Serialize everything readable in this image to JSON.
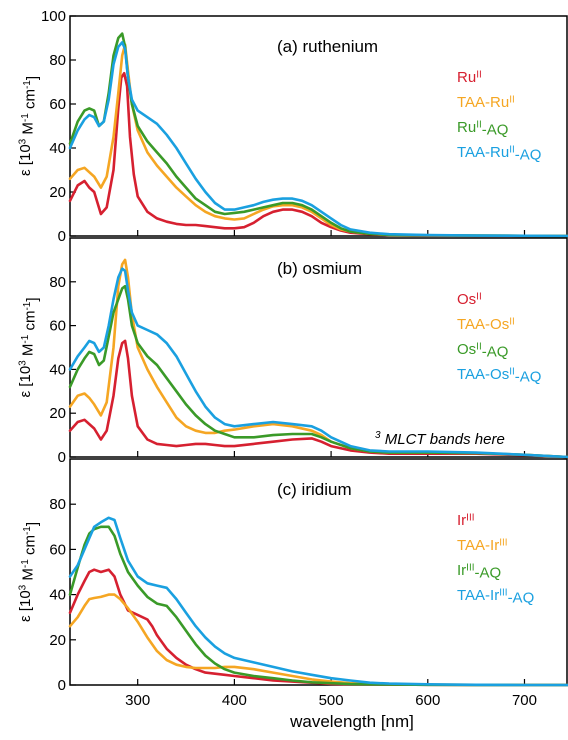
{
  "figure": {
    "xlabel": "wavelength [nm]",
    "xlim": [
      230,
      745
    ],
    "xticks": [
      300,
      400,
      500,
      600,
      700
    ],
    "annotation": "MLCT bands here",
    "annotation_superscript": "3"
  },
  "chart_data": [
    {
      "type": "line",
      "title": "(a) ruthenium",
      "ylabel": "ε [10^3 M^-1 cm^-1]",
      "ylim": [
        0,
        100
      ],
      "yticks": [
        0,
        20,
        40,
        60,
        80,
        100
      ],
      "grid": false,
      "legend_position": "top-right",
      "series": [
        {
          "name": "Ru^II",
          "color": "#d62030",
          "x": [
            230,
            238,
            245,
            250,
            255,
            262,
            268,
            275,
            280,
            283,
            286,
            289,
            292,
            296,
            300,
            310,
            320,
            330,
            340,
            350,
            360,
            370,
            380,
            390,
            400,
            410,
            420,
            430,
            440,
            450,
            460,
            470,
            480,
            490,
            500,
            510,
            520,
            540,
            560,
            600,
            650,
            700,
            745
          ],
          "y": [
            16,
            23,
            25,
            22,
            20,
            10,
            13,
            30,
            58,
            72,
            74,
            68,
            45,
            28,
            18,
            11,
            8,
            6.5,
            5.5,
            5,
            5,
            4.5,
            4,
            3.5,
            3.5,
            4,
            6,
            9,
            11,
            12,
            12,
            11,
            9,
            6,
            4,
            2.5,
            1.5,
            0.8,
            0.4,
            0.2,
            0.1,
            0.05,
            0
          ]
        },
        {
          "name": "TAA-Ru^II",
          "color": "#f5a623",
          "x": [
            230,
            238,
            245,
            250,
            255,
            262,
            268,
            275,
            280,
            284,
            287,
            290,
            294,
            300,
            310,
            320,
            330,
            340,
            350,
            360,
            370,
            380,
            390,
            400,
            410,
            420,
            430,
            440,
            450,
            460,
            470,
            480,
            490,
            500,
            510,
            520,
            540,
            560,
            600,
            650,
            700,
            745
          ],
          "y": [
            26,
            30,
            31,
            29,
            27,
            22,
            27,
            45,
            65,
            82,
            87,
            75,
            60,
            48,
            38,
            32,
            27,
            22,
            18,
            14,
            11,
            9,
            8,
            7.5,
            8,
            10,
            12,
            13.5,
            14,
            14,
            13,
            11,
            8,
            5,
            3,
            2,
            1,
            0.5,
            0.3,
            0.2,
            0.1,
            0
          ]
        },
        {
          "name": "Ru^II-AQ",
          "color": "#3a9a28",
          "x": [
            230,
            238,
            245,
            250,
            255,
            260,
            265,
            270,
            275,
            280,
            284,
            287,
            290,
            294,
            300,
            310,
            320,
            330,
            340,
            350,
            360,
            370,
            380,
            390,
            400,
            410,
            420,
            430,
            440,
            450,
            460,
            470,
            480,
            490,
            500,
            510,
            520,
            540,
            560,
            600,
            650,
            700,
            745
          ],
          "y": [
            42,
            52,
            57,
            58,
            57,
            50,
            52,
            65,
            82,
            90,
            92,
            86,
            72,
            60,
            50,
            43,
            38,
            33,
            27,
            22,
            17,
            14,
            11,
            10,
            10.5,
            11,
            12,
            13,
            14,
            15,
            15,
            14,
            12,
            9,
            6,
            3.5,
            2,
            1,
            0.5,
            0.3,
            0.2,
            0.1,
            0
          ]
        },
        {
          "name": "TAA-Ru^II-AQ",
          "color": "#1aa0e0",
          "x": [
            230,
            238,
            245,
            250,
            255,
            260,
            265,
            270,
            275,
            280,
            284,
            287,
            290,
            294,
            300,
            310,
            320,
            330,
            340,
            350,
            360,
            370,
            380,
            390,
            400,
            410,
            420,
            430,
            440,
            450,
            460,
            470,
            480,
            490,
            500,
            510,
            520,
            540,
            560,
            600,
            650,
            700,
            745
          ],
          "y": [
            40,
            48,
            53,
            55,
            54,
            50,
            52,
            62,
            78,
            86,
            88,
            85,
            72,
            62,
            57,
            54,
            51,
            46,
            40,
            33,
            26,
            20,
            15,
            12,
            12,
            13,
            14,
            15.5,
            16.5,
            17,
            17,
            16,
            14,
            11,
            8,
            5,
            3,
            1.5,
            0.8,
            0.4,
            0.2,
            0.1,
            0
          ]
        }
      ]
    },
    {
      "type": "line",
      "title": "(b) osmium",
      "ylabel": "ε [10^3 M^-1 cm^-1]",
      "ylim": [
        0,
        100
      ],
      "yticks": [
        0,
        20,
        40,
        60,
        80
      ],
      "grid": false,
      "legend_position": "top-right",
      "series": [
        {
          "name": "Os^II",
          "color": "#d62030",
          "x": [
            230,
            238,
            245,
            250,
            255,
            262,
            268,
            275,
            280,
            284,
            287,
            290,
            294,
            300,
            310,
            320,
            330,
            340,
            350,
            360,
            370,
            380,
            390,
            400,
            420,
            440,
            460,
            480,
            490,
            500,
            520,
            540,
            560,
            600,
            650,
            700,
            745
          ],
          "y": [
            12,
            16,
            17,
            15,
            13,
            8,
            12,
            28,
            45,
            52,
            53,
            45,
            28,
            14,
            8,
            6,
            5.5,
            5,
            5.5,
            6,
            6,
            5.5,
            5,
            5,
            6,
            7,
            8,
            8.5,
            7,
            5,
            3,
            2,
            1.5,
            1.5,
            1.5,
            0.8,
            0
          ]
        },
        {
          "name": "TAA-Os^II",
          "color": "#f5a623",
          "x": [
            230,
            238,
            245,
            250,
            255,
            262,
            268,
            275,
            280,
            284,
            287,
            290,
            294,
            300,
            310,
            320,
            330,
            340,
            350,
            360,
            370,
            380,
            390,
            400,
            420,
            440,
            460,
            480,
            490,
            500,
            520,
            540,
            560,
            600,
            650,
            700,
            745
          ],
          "y": [
            23,
            28,
            29,
            27,
            24,
            19,
            25,
            50,
            78,
            88,
            90,
            82,
            65,
            50,
            40,
            32,
            25,
            18,
            14,
            12,
            11,
            11,
            12,
            12.5,
            14,
            15,
            14,
            12,
            10,
            7,
            4,
            2.5,
            2,
            2,
            1.8,
            1,
            0
          ]
        },
        {
          "name": "Os^II-AQ",
          "color": "#3a9a28",
          "x": [
            230,
            238,
            245,
            250,
            255,
            260,
            265,
            270,
            275,
            280,
            284,
            287,
            290,
            294,
            300,
            310,
            320,
            330,
            340,
            350,
            360,
            370,
            380,
            390,
            400,
            420,
            440,
            460,
            480,
            490,
            500,
            520,
            540,
            560,
            600,
            650,
            700,
            745
          ],
          "y": [
            32,
            40,
            45,
            48,
            47,
            42,
            44,
            55,
            66,
            72,
            77,
            78,
            72,
            60,
            52,
            46,
            42,
            36,
            30,
            24,
            19,
            15,
            12,
            10.5,
            9,
            9,
            10,
            10.5,
            10.5,
            9,
            7,
            4,
            2.5,
            2,
            2,
            1.8,
            1,
            0
          ]
        },
        {
          "name": "TAA-Os^II-AQ",
          "color": "#1aa0e0",
          "x": [
            230,
            238,
            245,
            250,
            255,
            260,
            265,
            270,
            275,
            280,
            284,
            287,
            290,
            294,
            300,
            310,
            320,
            330,
            340,
            350,
            360,
            370,
            380,
            390,
            400,
            420,
            440,
            460,
            480,
            490,
            500,
            520,
            540,
            560,
            600,
            650,
            700,
            745
          ],
          "y": [
            40,
            46,
            50,
            53,
            52,
            48,
            50,
            60,
            72,
            82,
            86,
            85,
            76,
            66,
            60,
            58,
            56,
            52,
            46,
            38,
            30,
            23,
            18,
            15,
            14,
            15,
            16,
            15,
            14,
            12,
            9,
            5,
            3,
            2.5,
            2.5,
            2,
            1,
            0
          ]
        }
      ]
    },
    {
      "type": "line",
      "title": "(c) iridium",
      "ylabel": "ε [10^3 M^-1 cm^-1]",
      "ylim": [
        0,
        100
      ],
      "yticks": [
        0,
        20,
        40,
        60,
        80
      ],
      "grid": false,
      "legend_position": "top-right",
      "series": [
        {
          "name": "Ir^III",
          "color": "#d62030",
          "x": [
            230,
            238,
            245,
            250,
            255,
            262,
            270,
            276,
            282,
            290,
            300,
            310,
            315,
            320,
            330,
            340,
            350,
            360,
            370,
            380,
            390,
            400,
            420,
            440,
            460,
            480,
            500,
            520,
            560,
            600,
            650,
            700,
            745
          ],
          "y": [
            32,
            40,
            46,
            50,
            51,
            50,
            51,
            48,
            40,
            33,
            31,
            29,
            26,
            22,
            16,
            12,
            9,
            7,
            5.5,
            5,
            4.5,
            4,
            3,
            2,
            1.5,
            1,
            0.5,
            0.3,
            0.2,
            0.1,
            0.05,
            0,
            0
          ]
        },
        {
          "name": "TAA-Ir^III",
          "color": "#f5a623",
          "x": [
            230,
            238,
            245,
            250,
            255,
            262,
            270,
            276,
            282,
            290,
            300,
            310,
            320,
            330,
            340,
            350,
            360,
            370,
            380,
            390,
            400,
            420,
            440,
            460,
            480,
            500,
            520,
            560,
            600,
            650,
            700,
            745
          ],
          "y": [
            26,
            30,
            35,
            38,
            38.5,
            39,
            40,
            40,
            38,
            34,
            28,
            21,
            15,
            11,
            9,
            8,
            7.5,
            7.5,
            7.5,
            8,
            8,
            7,
            5.5,
            4,
            2.5,
            1.5,
            0.8,
            0.4,
            0.2,
            0.1,
            0,
            0
          ]
        },
        {
          "name": "Ir^III-AQ",
          "color": "#3a9a28",
          "x": [
            230,
            238,
            245,
            250,
            255,
            262,
            270,
            276,
            282,
            290,
            300,
            310,
            320,
            330,
            340,
            350,
            360,
            370,
            380,
            390,
            400,
            420,
            440,
            460,
            480,
            500,
            520,
            560,
            600,
            650,
            700,
            745
          ],
          "y": [
            40,
            52,
            62,
            67,
            69,
            70,
            70,
            66,
            58,
            50,
            44,
            39,
            36,
            35,
            30,
            24,
            18,
            13,
            9.5,
            7,
            5.5,
            4,
            3,
            2,
            1.2,
            0.8,
            0.4,
            0.2,
            0.1,
            0.05,
            0,
            0
          ]
        },
        {
          "name": "TAA-Ir^III-AQ",
          "color": "#1aa0e0",
          "x": [
            230,
            238,
            245,
            250,
            255,
            262,
            270,
            276,
            282,
            290,
            300,
            310,
            320,
            330,
            340,
            350,
            360,
            370,
            380,
            390,
            400,
            420,
            440,
            460,
            480,
            500,
            520,
            540,
            560,
            600,
            650,
            700,
            745
          ],
          "y": [
            48,
            53,
            60,
            65,
            70,
            72,
            74,
            73,
            65,
            55,
            48,
            45,
            44,
            43,
            38,
            32,
            26,
            21,
            17,
            14,
            12,
            10,
            8,
            6,
            4.5,
            3,
            2,
            1,
            0.6,
            0.3,
            0.1,
            0,
            0
          ]
        }
      ]
    }
  ]
}
